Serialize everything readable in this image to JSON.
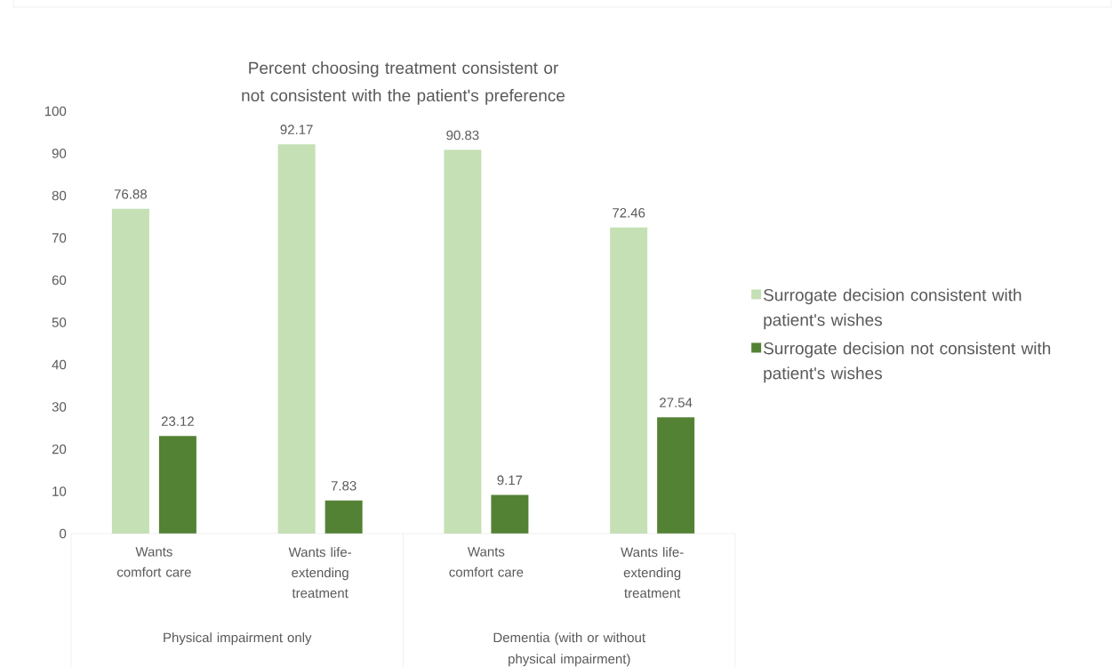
{
  "chart_data": {
    "type": "bar",
    "title": "Percent choosing treatment consistent or not consistent with the patient's preference",
    "categories": [
      "Wants comfort care",
      "Wants life-extending treatment",
      "Wants comfort care",
      "Wants life-extending treatment"
    ],
    "series": [
      {
        "name": "Surrogate decision consistent with patient's wishes",
        "color": "#c5e0b4",
        "values": [
          76.88,
          92.17,
          90.83,
          72.46
        ]
      },
      {
        "name": "Surrogate decision not consistent with patient's wishes",
        "color": "#548235",
        "values": [
          23.12,
          7.83,
          9.17,
          27.54
        ]
      }
    ],
    "annotations": [
      "Physical impairment only",
      "Dementia (with or without physical impairment)"
    ],
    "ylim": [
      0,
      100
    ],
    "yticks": [
      0,
      10,
      20,
      30,
      40,
      50,
      60,
      70,
      80,
      90,
      100
    ],
    "data_labels": true,
    "legend": "right",
    "grid": false
  }
}
